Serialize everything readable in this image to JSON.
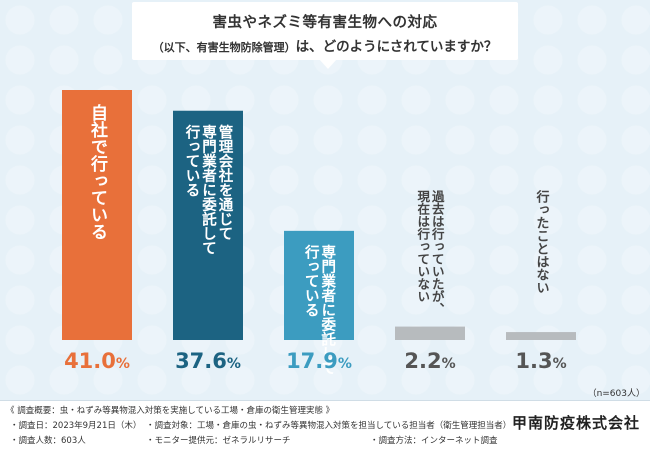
{
  "title": {
    "line1": "害虫やネズミ等有害生物への対応",
    "line2_small": "（以下、有害生物防除管理）",
    "line2_rest": "は、どのようにされていますか？"
  },
  "chart_data": {
    "type": "bar",
    "categories": [
      [
        "自社で行っている"
      ],
      [
        "管理会社を通じて",
        "専門業者に委託して",
        "行っている"
      ],
      [
        "専門業者に委託して",
        "行っている"
      ],
      [
        "過去は行っていたが、",
        "現在は行っていない"
      ],
      [
        "行ったことはない"
      ]
    ],
    "values": [
      41.0,
      37.6,
      17.9,
      2.2,
      1.3
    ],
    "value_labels": [
      "41.0",
      "37.6",
      "17.9",
      "2.2",
      "1.3"
    ],
    "unit": "%",
    "colors": [
      "#e8703a",
      "#1c6382",
      "#3c9cc0",
      "#b7bbbe",
      "#b7bbbe"
    ],
    "label_colors": [
      "#e8703a",
      "#1c6382",
      "#3c9cc0",
      "#555555",
      "#555555"
    ],
    "sample_note": "（n=603人）"
  },
  "notes": {
    "overview": "《 調査概要：虫・ねずみ等異物混入対策を実施している工場・倉庫の衛生管理実態 》",
    "date": "・調査日：2023年9月21日（木）",
    "target": "・調査対象：工場・倉庫の虫・ねずみ等異物混入対策を担当している担当者（衛生管理担当者）",
    "count": "・調査人数：603人",
    "provider": "・モニター提供元：ゼネラルリサーチ",
    "method": "・調査方法：インターネット調査"
  },
  "brand": "甲南防疫株式会社"
}
